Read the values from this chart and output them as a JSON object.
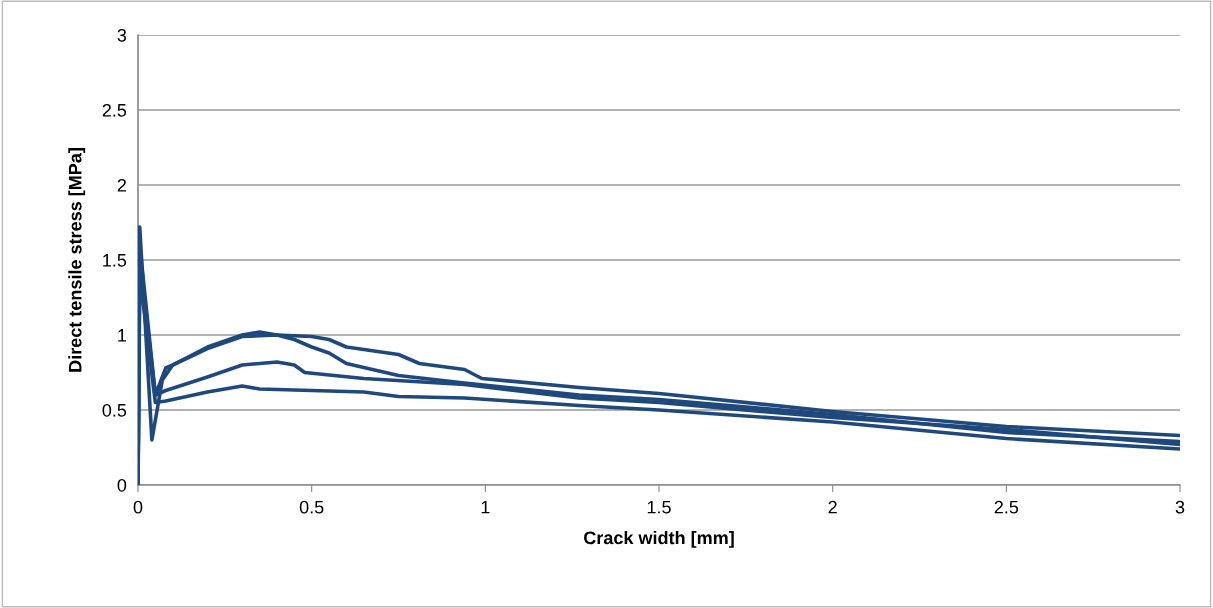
{
  "chart_data": {
    "type": "line",
    "xlabel": "Crack width [mm]",
    "ylabel": "Direct tensile stress [MPa]",
    "xlim": [
      0,
      3
    ],
    "xticks": [
      0,
      0.5,
      1,
      1.5,
      2,
      2.5,
      3
    ],
    "ylim": [
      0,
      3
    ],
    "yticks": [
      0,
      0.5,
      1,
      1.5,
      2,
      2.5,
      3
    ],
    "grid": "y",
    "marker": "none",
    "line_style": "solid",
    "series": [
      {
        "color": "#1f497d",
        "x": [
          0,
          0.005,
          0.04,
          0.07,
          0.1,
          0.2,
          0.3,
          0.35,
          0.4,
          0.45,
          0.5,
          0.55,
          0.6,
          0.75,
          0.94,
          1.27,
          1.5,
          2,
          2.5,
          3
        ],
        "values": [
          0,
          1.72,
          0.3,
          0.7,
          0.8,
          0.92,
          1.0,
          1.02,
          1.0,
          0.97,
          0.92,
          0.88,
          0.81,
          0.73,
          0.68,
          0.6,
          0.57,
          0.47,
          0.35,
          0.29
        ]
      },
      {
        "color": "#1f497d",
        "x": [
          0,
          0.005,
          0.05,
          0.08,
          0.1,
          0.2,
          0.3,
          0.4,
          0.5,
          0.55,
          0.6,
          0.75,
          0.81,
          0.94,
          0.99,
          1.27,
          1.5,
          2,
          2.5,
          3
        ],
        "values": [
          0,
          1.6,
          0.6,
          0.78,
          0.8,
          0.91,
          0.99,
          1.0,
          0.99,
          0.97,
          0.92,
          0.87,
          0.81,
          0.77,
          0.71,
          0.65,
          0.61,
          0.49,
          0.39,
          0.33
        ]
      },
      {
        "color": "#1f497d",
        "x": [
          0,
          0.005,
          0.05,
          0.08,
          0.2,
          0.3,
          0.4,
          0.45,
          0.48,
          0.65,
          0.94,
          1.27,
          1.5,
          2,
          2.5,
          3
        ],
        "values": [
          0,
          1.5,
          0.6,
          0.63,
          0.72,
          0.8,
          0.82,
          0.8,
          0.75,
          0.71,
          0.67,
          0.58,
          0.55,
          0.45,
          0.37,
          0.27
        ]
      },
      {
        "color": "#1f497d",
        "x": [
          0,
          0.005,
          0.05,
          0.08,
          0.2,
          0.3,
          0.35,
          0.5,
          0.65,
          0.75,
          0.94,
          1.27,
          1.5,
          2,
          2.5,
          3
        ],
        "values": [
          0,
          1.4,
          0.55,
          0.56,
          0.62,
          0.66,
          0.64,
          0.63,
          0.62,
          0.59,
          0.58,
          0.53,
          0.5,
          0.42,
          0.31,
          0.24
        ]
      }
    ]
  }
}
